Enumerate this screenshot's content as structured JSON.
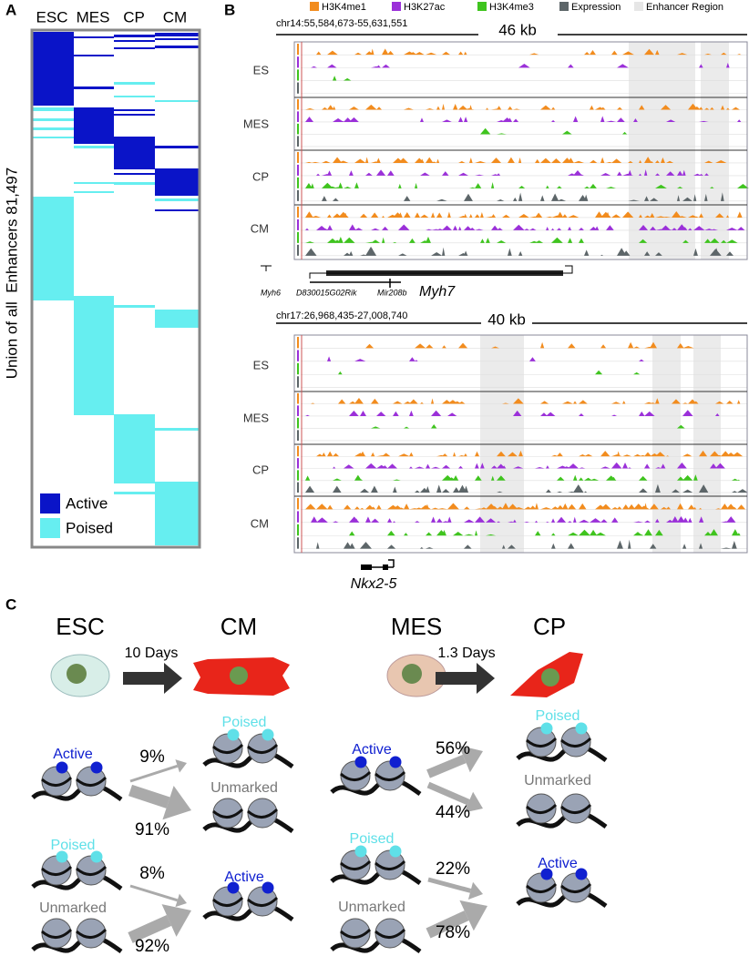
{
  "panel_a": {
    "label": "A",
    "columns": [
      "ESC",
      "MES",
      "CP",
      "CM"
    ],
    "y_axis_label": "Union of all  Enhancers 81,497",
    "legend": [
      "Active",
      "Poised"
    ]
  },
  "panel_b": {
    "label": "B",
    "legend": [
      "H3K4me1",
      "H3K27ac",
      "H3K4me3",
      "Expression",
      "Enhancer Region"
    ],
    "tracks": [
      {
        "region": "chr14:55,584,673-55,631,551",
        "scale": "46 kb",
        "rows": [
          "ES",
          "MES",
          "CP",
          "CM"
        ],
        "genes": [
          "Myh6",
          "D830015G02Rik",
          "Mir208b",
          "Myh7"
        ]
      },
      {
        "region": "chr17:26,968,435-27,008,740",
        "scale": "40 kb",
        "rows": [
          "ES",
          "MES",
          "CP",
          "CM"
        ],
        "genes": [
          "Nkx2-5"
        ]
      }
    ]
  },
  "panel_c": {
    "label": "C",
    "transitions": [
      {
        "from": "ESC",
        "to": "CM",
        "time": "10 Days",
        "active_out": {
          "source": "Active",
          "targets": [
            "Poised",
            "Unmarked"
          ],
          "percentages": [
            "9%",
            "91%"
          ]
        },
        "active_in": {
          "sources": [
            "Poised",
            "Unmarked"
          ],
          "target": "Active",
          "percentages": [
            "8%",
            "92%"
          ]
        }
      },
      {
        "from": "MES",
        "to": "CP",
        "time": "1.3 Days",
        "active_out": {
          "source": "Active",
          "targets": [
            "Poised",
            "Unmarked"
          ],
          "percentages": [
            "56%",
            "44%"
          ]
        },
        "active_in": {
          "sources": [
            "Poised",
            "Unmarked"
          ],
          "target": "Active",
          "percentages": [
            "22%",
            "78%"
          ]
        }
      }
    ]
  }
}
